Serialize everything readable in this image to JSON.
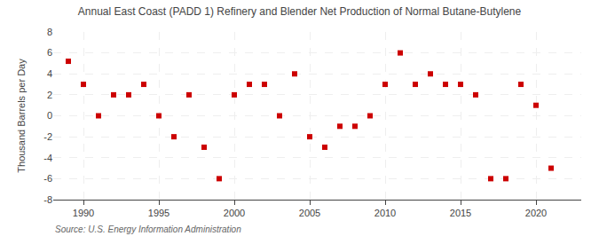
{
  "chart_data": {
    "type": "scatter",
    "title": "Annual East Coast (PADD 1) Refinery and Blender Net Production of Normal Butane-Butylene",
    "ylabel": "Thousand Barrels per Day",
    "annotations": [
      "Source: U.S. Energy Information Administration"
    ],
    "x": [
      1989,
      1990,
      1991,
      1992,
      1993,
      1994,
      1995,
      1996,
      1997,
      1998,
      1999,
      2000,
      2001,
      2002,
      2003,
      2004,
      2005,
      2006,
      2007,
      2008,
      2009,
      2010,
      2011,
      2012,
      2013,
      2014,
      2015,
      2016,
      2017,
      2018,
      2019,
      2020,
      2021
    ],
    "values": [
      5.2,
      3.0,
      0.0,
      2.0,
      2.0,
      3.0,
      0.0,
      -2.0,
      2.0,
      -3.0,
      -6.0,
      2.0,
      3.0,
      3.0,
      0.0,
      4.0,
      -2.0,
      -3.0,
      -1.0,
      -1.0,
      0.0,
      3.0,
      6.0,
      3.0,
      4.0,
      3.0,
      3.0,
      2.0,
      -6.0,
      -6.0,
      3.0,
      1.0,
      -5.0
    ],
    "color": "#cc0000",
    "marker": "square",
    "xlim": [
      1988.0,
      2023.0
    ],
    "xticks": [
      1990,
      1995,
      2000,
      2005,
      2010,
      2015,
      2020
    ],
    "ylim": [
      -8,
      8
    ],
    "yticks": [
      -8,
      -6,
      -4,
      -2,
      0,
      2,
      4,
      6,
      8
    ],
    "grid": true
  }
}
